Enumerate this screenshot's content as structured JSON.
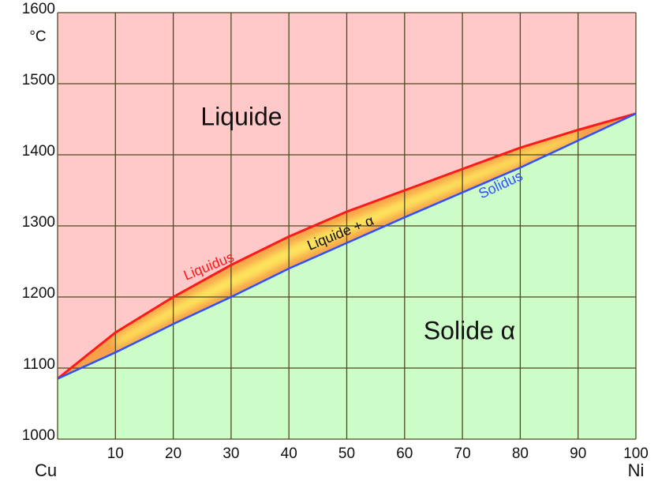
{
  "chart_data": {
    "type": "line",
    "x": [
      0,
      10,
      20,
      30,
      40,
      50,
      60,
      70,
      80,
      90,
      100
    ],
    "series": [
      {
        "name": "Liquidus",
        "color": "#ff1a1a",
        "values": [
          1085,
          1150,
          1200,
          1245,
          1285,
          1320,
          1350,
          1380,
          1410,
          1435,
          1458
        ]
      },
      {
        "name": "Solidus",
        "color": "#3050ff",
        "values": [
          1085,
          1122,
          1162,
          1200,
          1240,
          1276,
          1312,
          1347,
          1382,
          1420,
          1458
        ]
      }
    ],
    "xlim": [
      0,
      100
    ],
    "xticks": [
      10,
      20,
      30,
      40,
      50,
      60,
      70,
      80,
      90,
      100
    ],
    "ylim": [
      1000,
      1600
    ],
    "yticks": [
      1000,
      1100,
      1200,
      1300,
      1400,
      1500,
      1600
    ],
    "y_unit": "°C",
    "x_start_label": "Cu",
    "x_end_label": "Ni",
    "annotations": [
      "Liquide",
      "Liquide + α",
      "Solide α"
    ],
    "grid": true
  }
}
